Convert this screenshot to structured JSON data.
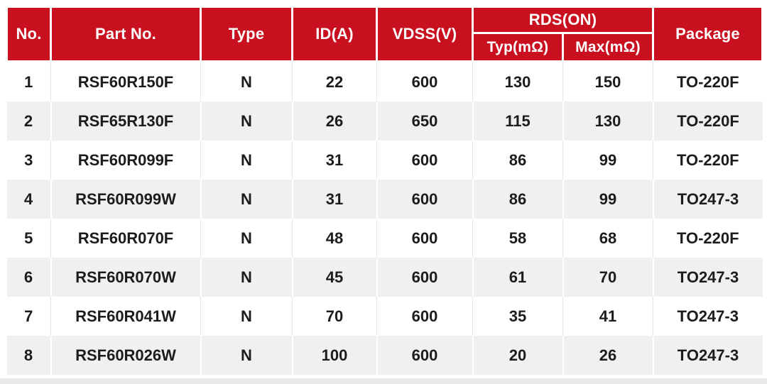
{
  "table": {
    "header": {
      "no": "No.",
      "part_no": "Part No.",
      "type": "Type",
      "id_a": "ID(A)",
      "vdss": "VDSS(V)",
      "rds_on": "RDS(ON)",
      "rds_typ": "Typ(mΩ)",
      "rds_max": "Max(mΩ)",
      "package": "Package"
    },
    "colors": {
      "header_bg": "#c8101e",
      "header_text": "#ffffff",
      "row_even_bg": "#f0f0f0",
      "body_text": "#1c1c1c"
    }
  },
  "chart_data": {
    "type": "table",
    "columns": [
      "No.",
      "Part No.",
      "Type",
      "ID(A)",
      "VDSS(V)",
      "RDS(ON) Typ(mΩ)",
      "RDS(ON) Max(mΩ)",
      "Package"
    ],
    "rows": [
      [
        "1",
        "RSF60R150F",
        "N",
        "22",
        "600",
        "130",
        "150",
        "TO-220F"
      ],
      [
        "2",
        "RSF65R130F",
        "N",
        "26",
        "650",
        "115",
        "130",
        "TO-220F"
      ],
      [
        "3",
        "RSF60R099F",
        "N",
        "31",
        "600",
        "86",
        "99",
        "TO-220F"
      ],
      [
        "4",
        "RSF60R099W",
        "N",
        "31",
        "600",
        "86",
        "99",
        "TO247-3"
      ],
      [
        "5",
        "RSF60R070F",
        "N",
        "48",
        "600",
        "58",
        "68",
        "TO-220F"
      ],
      [
        "6",
        "RSF60R070W",
        "N",
        "45",
        "600",
        "61",
        "70",
        "TO247-3"
      ],
      [
        "7",
        "RSF60R041W",
        "N",
        "70",
        "600",
        "35",
        "41",
        "TO247-3"
      ],
      [
        "8",
        "RSF60R026W",
        "N",
        "100",
        "600",
        "20",
        "26",
        "TO247-3"
      ]
    ]
  }
}
